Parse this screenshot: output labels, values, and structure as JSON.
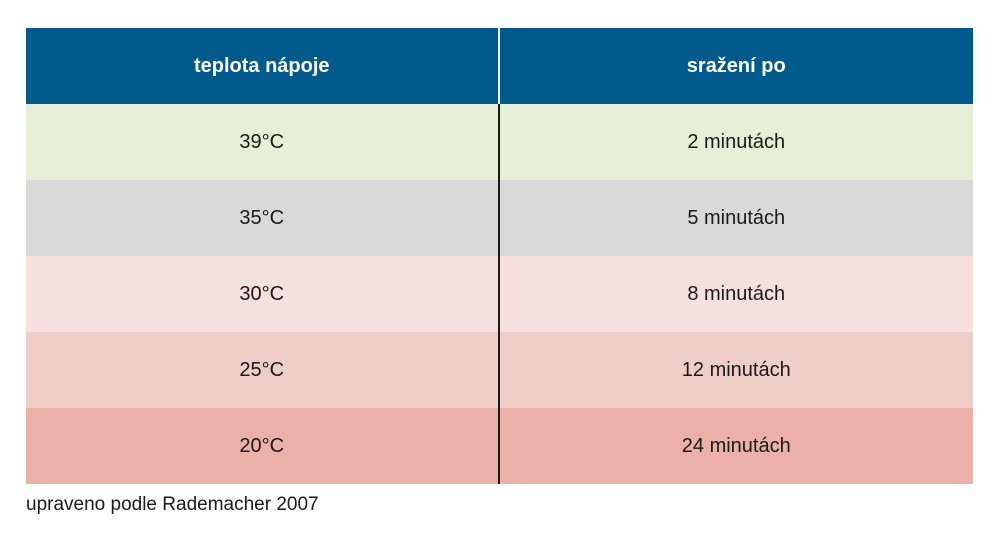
{
  "table": {
    "headers": [
      "teplota nápoje",
      "sražení po"
    ],
    "rows": [
      {
        "temperature": "39°C",
        "time": "2 minutách",
        "color": "#e6efd8"
      },
      {
        "temperature": "35°C",
        "time": "5 minutách",
        "color": "#d9d9d9"
      },
      {
        "temperature": "30°C",
        "time": "8 minutách",
        "color": "#f7e0df"
      },
      {
        "temperature": "25°C",
        "time": "12 minutách",
        "color": "#efcdc8"
      },
      {
        "temperature": "20°C",
        "time": "24 minutách",
        "color": "#ebb0a8"
      }
    ],
    "header_color": "#005a8c"
  },
  "footnote": "upraveno podle Rademacher 2007"
}
